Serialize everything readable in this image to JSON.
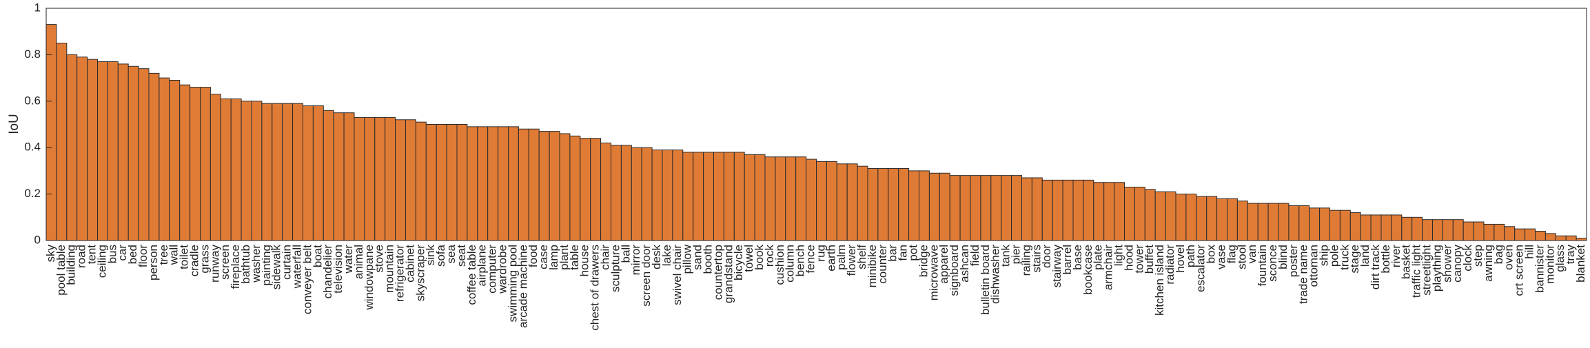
{
  "chart_data": {
    "type": "bar",
    "ylabel": "IoU",
    "color": "#e07b35",
    "categories": [
      "sky",
      "pool table",
      "building",
      "road",
      "tent",
      "ceiling",
      "bus",
      "car",
      "bed",
      "floor",
      "person",
      "tree",
      "wall",
      "toilet",
      "cradle",
      "grass",
      "runway",
      "screen",
      "fireplace",
      "bathtub",
      "washer",
      "painting",
      "sidewalk",
      "curtain",
      "waterfall",
      "conveyer belt",
      "boat",
      "chandelier",
      "television",
      "water",
      "animal",
      "windowpane",
      "stove",
      "mountain",
      "refrigerator",
      "cabinet",
      "skyscraper",
      "sink",
      "sofa",
      "sea",
      "seat",
      "coffee table",
      "airplane",
      "computer",
      "wardrobe",
      "swimming pool",
      "arcade machine",
      "food",
      "case",
      "lamp",
      "plant",
      "table",
      "house",
      "chest of drawers",
      "chair",
      "sculpture",
      "ball",
      "mirror",
      "screen door",
      "desk",
      "lake",
      "swivel chair",
      "pillow",
      "sand",
      "booth",
      "countertop",
      "grandstand",
      "bicycle",
      "towel",
      "book",
      "rock",
      "cushion",
      "column",
      "bench",
      "fence",
      "rug",
      "earth",
      "palm",
      "flower",
      "shelf",
      "minibike",
      "counter",
      "bar",
      "fan",
      "pot",
      "bridge",
      "microwave",
      "apparel",
      "signboard",
      "ashcan",
      "field",
      "bulletin board",
      "dishwasher",
      "tank",
      "pier",
      "railing",
      "stairs",
      "door",
      "stairway",
      "barrel",
      "base",
      "bookcase",
      "plate",
      "armchair",
      "light",
      "hood",
      "tower",
      "buffet",
      "kitchen island",
      "radiator",
      "hovel",
      "path",
      "escalator",
      "box",
      "vase",
      "flag",
      "stool",
      "van",
      "fountain",
      "sconce",
      "blind",
      "poster",
      "trade name",
      "ottoman",
      "ship",
      "pole",
      "truck",
      "stage",
      "land",
      "dirt track",
      "bottle",
      "river",
      "basket",
      "traffic light",
      "streetlight",
      "plaything",
      "shower",
      "canopy",
      "clock",
      "step",
      "awning",
      "bag",
      "oven",
      "crt screen",
      "hill",
      "bannister",
      "monitor",
      "glass",
      "tray",
      "blanket"
    ],
    "values": [
      0.93,
      0.85,
      0.8,
      0.79,
      0.78,
      0.77,
      0.77,
      0.76,
      0.75,
      0.74,
      0.72,
      0.7,
      0.69,
      0.67,
      0.66,
      0.66,
      0.63,
      0.61,
      0.61,
      0.6,
      0.6,
      0.59,
      0.59,
      0.59,
      0.59,
      0.58,
      0.58,
      0.56,
      0.55,
      0.55,
      0.53,
      0.53,
      0.53,
      0.53,
      0.52,
      0.52,
      0.51,
      0.5,
      0.5,
      0.5,
      0.5,
      0.49,
      0.49,
      0.49,
      0.49,
      0.49,
      0.48,
      0.48,
      0.47,
      0.47,
      0.46,
      0.45,
      0.44,
      0.44,
      0.42,
      0.41,
      0.41,
      0.4,
      0.4,
      0.39,
      0.39,
      0.39,
      0.38,
      0.38,
      0.38,
      0.38,
      0.38,
      0.38,
      0.37,
      0.37,
      0.36,
      0.36,
      0.36,
      0.36,
      0.35,
      0.34,
      0.34,
      0.33,
      0.33,
      0.32,
      0.31,
      0.31,
      0.31,
      0.31,
      0.3,
      0.3,
      0.29,
      0.29,
      0.28,
      0.28,
      0.28,
      0.28,
      0.28,
      0.28,
      0.28,
      0.27,
      0.27,
      0.26,
      0.26,
      0.26,
      0.26,
      0.26,
      0.25,
      0.25,
      0.25,
      0.23,
      0.23,
      0.22,
      0.21,
      0.21,
      0.2,
      0.2,
      0.19,
      0.19,
      0.18,
      0.18,
      0.17,
      0.16,
      0.16,
      0.16,
      0.16,
      0.15,
      0.15,
      0.14,
      0.14,
      0.13,
      0.13,
      0.12,
      0.11,
      0.11,
      0.11,
      0.11,
      0.1,
      0.1,
      0.09,
      0.09,
      0.09,
      0.09,
      0.08,
      0.08,
      0.07,
      0.07,
      0.06,
      0.05,
      0.05,
      0.04,
      0.03,
      0.02,
      0.02,
      0.01
    ],
    "ylim": [
      0,
      1
    ],
    "yticks": [
      0,
      0.2,
      0.4,
      0.6,
      0.8,
      1
    ]
  }
}
